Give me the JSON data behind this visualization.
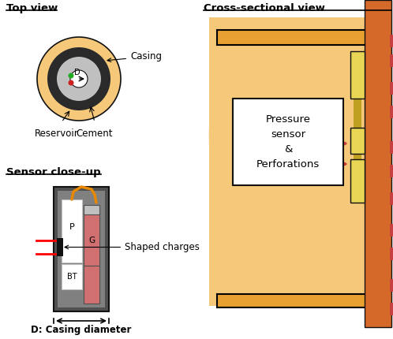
{
  "title_top_view": "Top view",
  "title_cross_section": "Cross-sectional view",
  "title_sensor_closeup": "Sensor close-up",
  "label_casing": "Casing",
  "label_reservoir": "Reservoir",
  "label_cement": "Cement",
  "label_shaped_charges": "Shaped charges",
  "label_d_casing": "D: Casing diameter",
  "label_pressure": "Pressure\nsensor\n&\nPerforations",
  "label_P": "P",
  "label_G": "G",
  "label_BT": "BT",
  "label_D": "D",
  "color_sand": "#F5C87A",
  "color_sand_dark": "#E8A030",
  "color_casing_orange": "#D4692A",
  "color_red_block": "#C84040",
  "color_yellow_block": "#E8D455",
  "color_black": "#111111",
  "color_dark_gray": "#505050",
  "color_mid_gray": "#808080",
  "color_light_gray": "#C0C0C0",
  "color_white": "#FFFFFF",
  "color_green": "#22AA22",
  "color_red_dot": "#CC2222",
  "color_orange_wire": "#E88800",
  "color_pink_red": "#D07070",
  "bg_color": "#FFFFFF",
  "fig_w": 4.98,
  "fig_h": 4.3,
  "dpi": 100
}
